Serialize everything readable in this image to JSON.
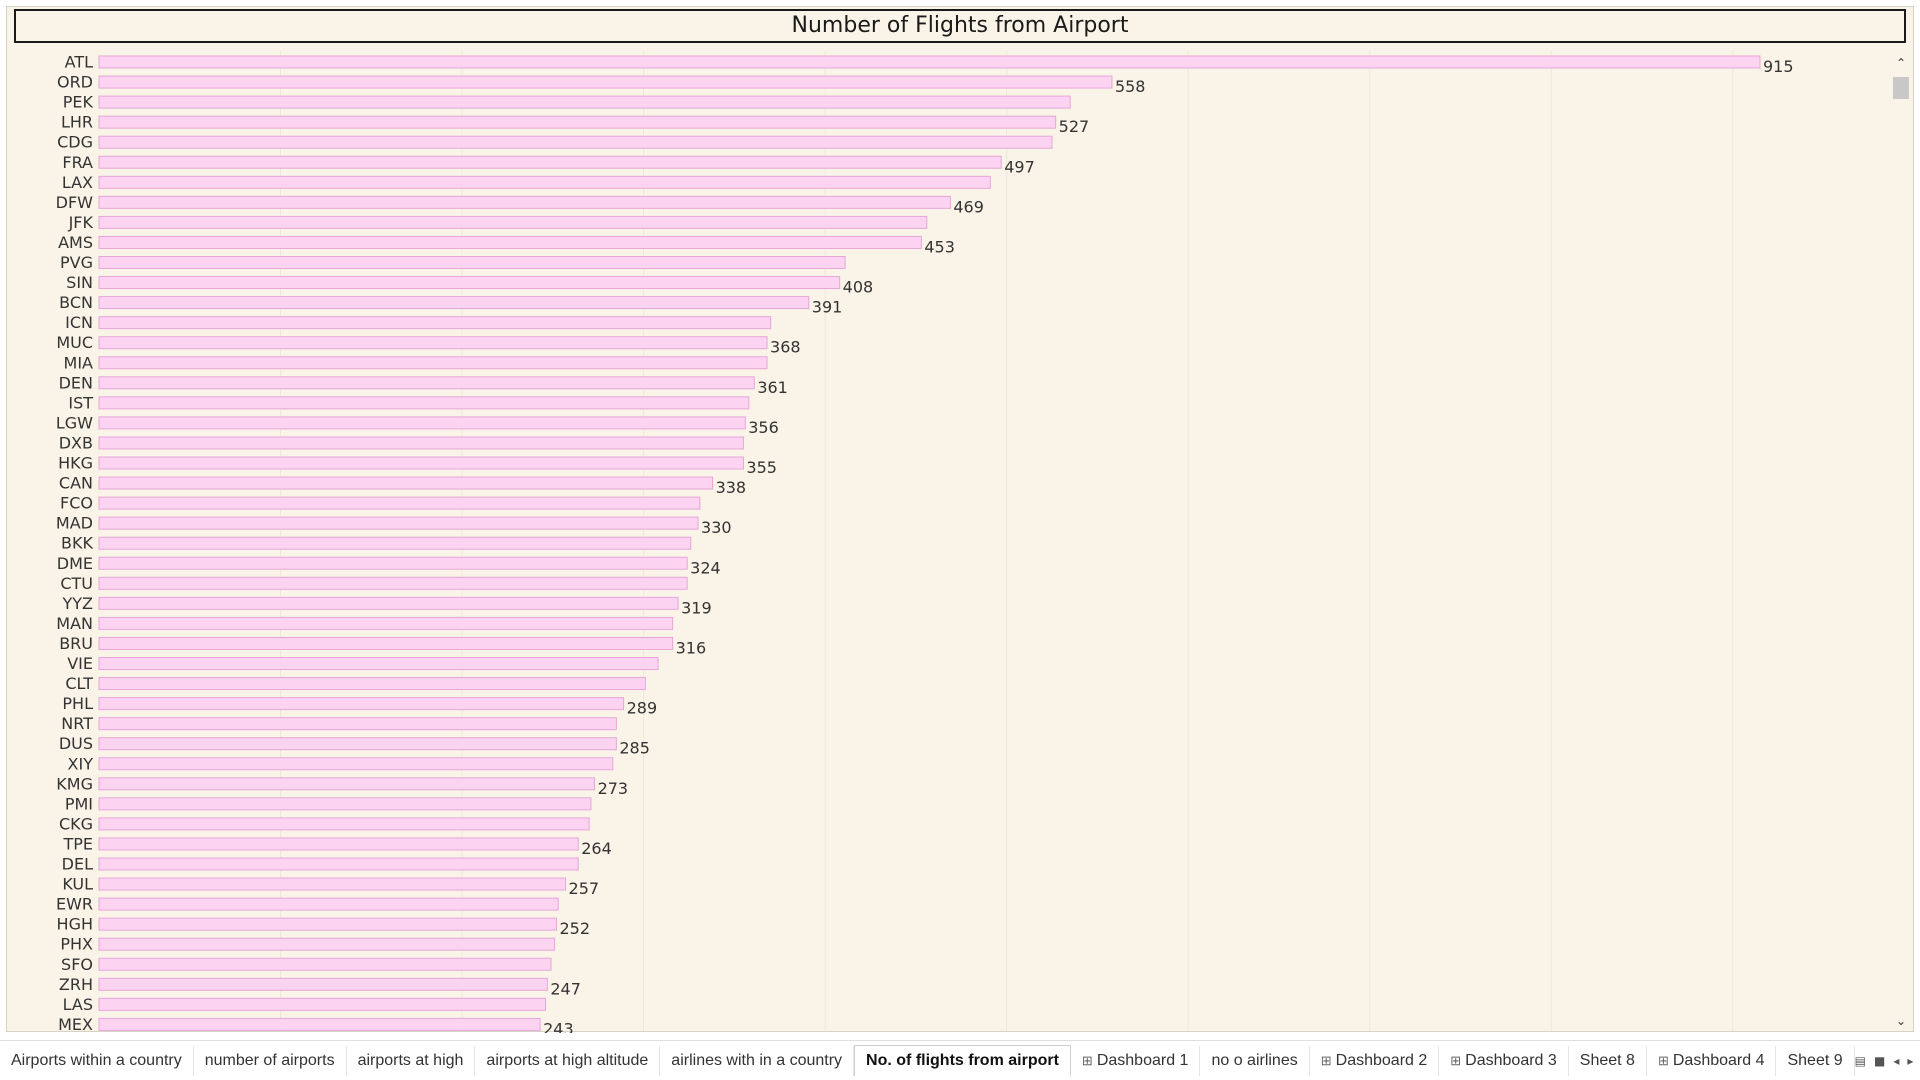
{
  "chart_data": {
    "type": "bar",
    "orientation": "horizontal",
    "title": "Number of Flights from Airport",
    "categories": [
      "ATL",
      "ORD",
      "PEK",
      "LHR",
      "CDG",
      "FRA",
      "LAX",
      "DFW",
      "JFK",
      "AMS",
      "PVG",
      "SIN",
      "BCN",
      "ICN",
      "MUC",
      "MIA",
      "DEN",
      "IST",
      "LGW",
      "DXB",
      "HKG",
      "CAN",
      "FCO",
      "MAD",
      "BKK",
      "DME",
      "CTU",
      "YYZ",
      "MAN",
      "BRU",
      "VIE",
      "CLT",
      "PHL",
      "NRT",
      "DUS",
      "XIY",
      "KMG",
      "PMI",
      "CKG",
      "TPE",
      "DEL",
      "KUL",
      "EWR",
      "HGH",
      "PHX",
      "SFO",
      "ZRH",
      "LAS",
      "MEX"
    ],
    "values": [
      915,
      558,
      535,
      527,
      525,
      497,
      491,
      469,
      456,
      453,
      411,
      408,
      391,
      370,
      368,
      368,
      361,
      358,
      356,
      355,
      355,
      338,
      331,
      330,
      326,
      324,
      324,
      319,
      316,
      316,
      308,
      301,
      289,
      285,
      285,
      283,
      273,
      271,
      270,
      264,
      264,
      257,
      253,
      252,
      251,
      249,
      247,
      246,
      243
    ],
    "labels_shown": [
      915,
      558,
      null,
      527,
      null,
      497,
      null,
      469,
      null,
      453,
      null,
      408,
      391,
      null,
      368,
      null,
      361,
      null,
      356,
      null,
      355,
      338,
      null,
      330,
      null,
      324,
      null,
      319,
      null,
      316,
      null,
      null,
      289,
      null,
      285,
      null,
      273,
      null,
      null,
      264,
      null,
      257,
      null,
      252,
      null,
      null,
      247,
      null,
      243
    ],
    "xlim": [
      0,
      985
    ],
    "bar_color": "#fcd4f2",
    "bar_border": "#e6a6d8",
    "grid": "vertical-light",
    "xlabel": "",
    "ylabel": ""
  },
  "tabs": [
    {
      "label": "Airports within a country",
      "icon": "",
      "active": false
    },
    {
      "label": "number of airports",
      "icon": "",
      "active": false
    },
    {
      "label": "airports at high",
      "icon": "",
      "active": false
    },
    {
      "label": "airports at high altitude",
      "icon": "",
      "active": false
    },
    {
      "label": "airlines  with in a country",
      "icon": "",
      "active": false
    },
    {
      "label": "No. of flights from airport",
      "icon": "",
      "active": true
    },
    {
      "label": "Dashboard 1",
      "icon": "⊞",
      "active": false
    },
    {
      "label": "no o airlines",
      "icon": "",
      "active": false
    },
    {
      "label": "Dashboard 2",
      "icon": "⊞",
      "active": false
    },
    {
      "label": "Dashboard 3",
      "icon": "⊞",
      "active": false
    },
    {
      "label": "Sheet 8",
      "icon": "",
      "active": false
    },
    {
      "label": "Dashboard 4",
      "icon": "⊞",
      "active": false
    },
    {
      "label": "Sheet 9",
      "icon": "",
      "active": false
    }
  ],
  "controls": [
    {
      "name": "show-sheet-sorter-icon",
      "glyph": "▤"
    },
    {
      "name": "show-filmstrip-icon",
      "glyph": "■"
    },
    {
      "name": "scroll-tabs-left-icon",
      "glyph": "◂"
    },
    {
      "name": "scroll-tabs-right-icon",
      "glyph": "▸"
    },
    {
      "name": "fullscreen-icon",
      "glyph": "⛶"
    },
    {
      "name": "presentation-mode-icon",
      "glyph": "⊡"
    }
  ],
  "scrollbar": {
    "up": "⌃",
    "down": "⌄"
  }
}
